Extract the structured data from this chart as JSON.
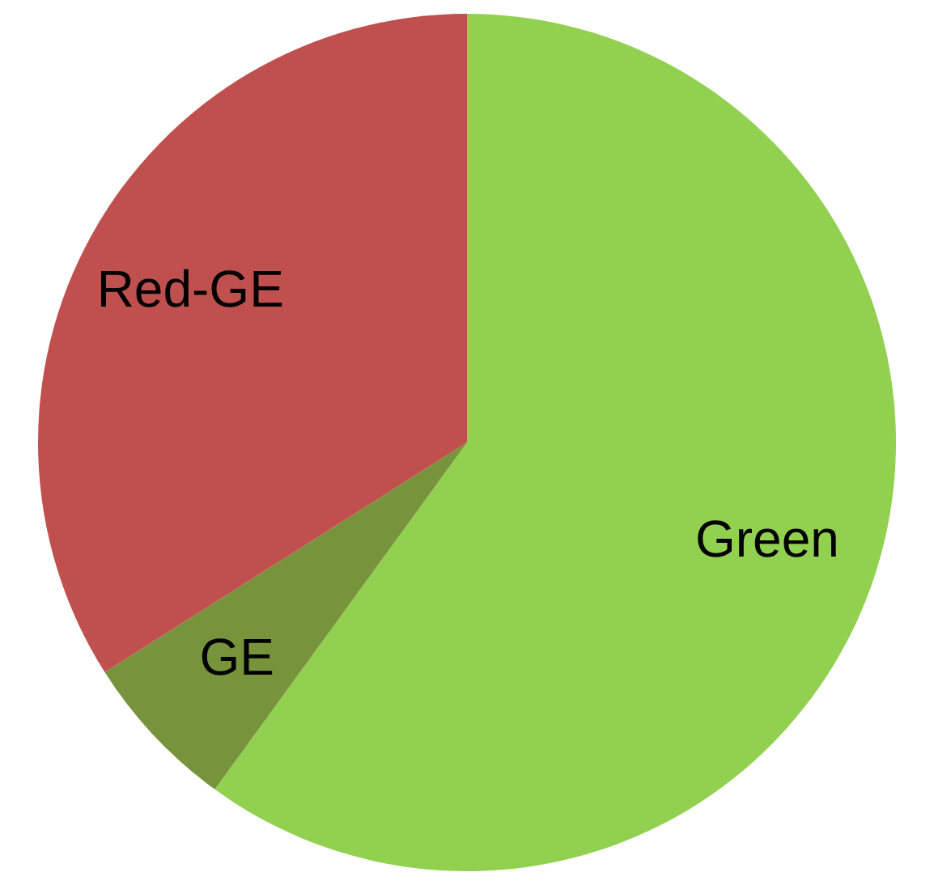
{
  "chart_data": {
    "type": "pie",
    "categories": [
      "Green",
      "GE",
      "Red-GE"
    ],
    "values": [
      60,
      6,
      34
    ],
    "colors": [
      "#92d050",
      "#77933c",
      "#c0504d"
    ]
  }
}
